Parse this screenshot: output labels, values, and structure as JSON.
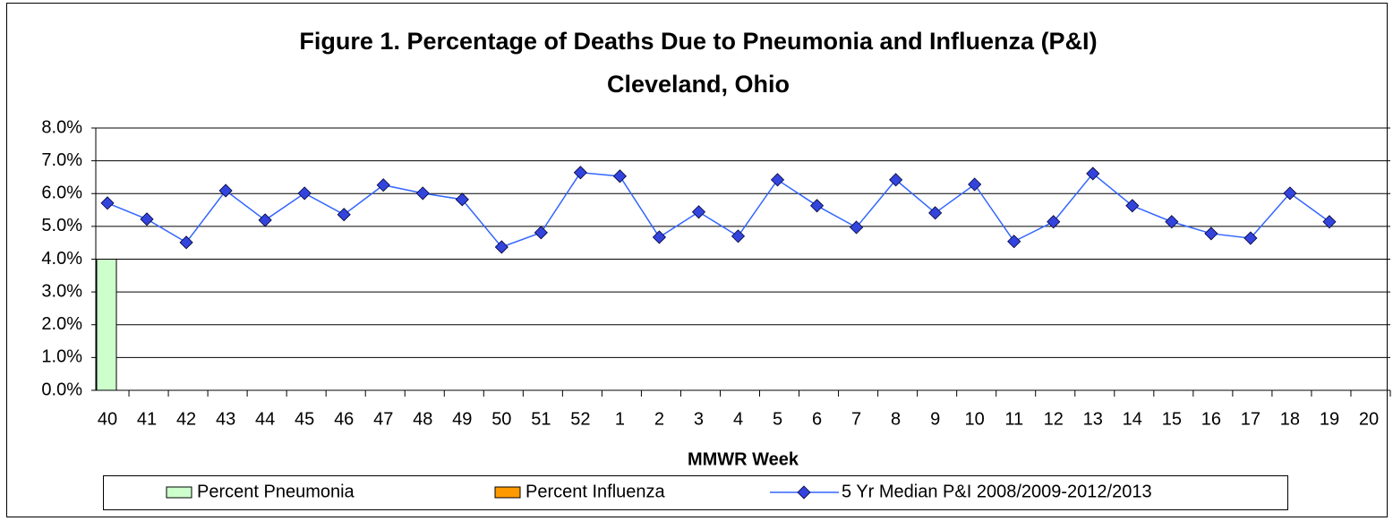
{
  "chart_data": {
    "type": "bar-line",
    "title": "Figure 1. Percentage of Deaths Due to Pneumonia and Influenza (P&I)",
    "subtitle": "Cleveland, Ohio",
    "x_label": "MMWR Week",
    "categories": [
      "40",
      "41",
      "42",
      "43",
      "44",
      "45",
      "46",
      "47",
      "48",
      "49",
      "50",
      "51",
      "52",
      "1",
      "2",
      "3",
      "4",
      "5",
      "6",
      "7",
      "8",
      "9",
      "10",
      "11",
      "12",
      "13",
      "14",
      "15",
      "16",
      "17",
      "18",
      "19",
      "20"
    ],
    "series": [
      {
        "name": "Percent Pneumonia",
        "type": "bar",
        "color": "#ccffcc",
        "values": [
          4.0,
          null,
          null,
          null,
          null,
          null,
          null,
          null,
          null,
          null,
          null,
          null,
          null,
          null,
          null,
          null,
          null,
          null,
          null,
          null,
          null,
          null,
          null,
          null,
          null,
          null,
          null,
          null,
          null,
          null,
          null,
          null,
          null
        ]
      },
      {
        "name": "Percent Influenza",
        "type": "bar",
        "color": "#ff9900",
        "values": [
          0,
          null,
          null,
          null,
          null,
          null,
          null,
          null,
          null,
          null,
          null,
          null,
          null,
          null,
          null,
          null,
          null,
          null,
          null,
          null,
          null,
          null,
          null,
          null,
          null,
          null,
          null,
          null,
          null,
          null,
          null,
          null,
          null
        ]
      },
      {
        "name": "5 Yr Median P&I 2008/2009-2012/2013",
        "type": "line",
        "color": "#3366ff",
        "marker_color": "#3344dd",
        "values": [
          5.71,
          5.22,
          4.51,
          6.09,
          5.19,
          6.01,
          5.36,
          6.26,
          6.01,
          5.82,
          4.37,
          4.81,
          6.64,
          6.53,
          4.67,
          5.44,
          4.7,
          6.42,
          5.63,
          4.97,
          6.42,
          5.41,
          6.28,
          4.54,
          5.14,
          6.61,
          5.63,
          5.14,
          4.78,
          4.64,
          6.01,
          5.14,
          null
        ]
      }
    ],
    "ylim": [
      0,
      8
    ],
    "yticks": [
      {
        "value": 0,
        "label": "0.0%"
      },
      {
        "value": 1,
        "label": "1.0%"
      },
      {
        "value": 2,
        "label": "2.0%"
      },
      {
        "value": 3,
        "label": "3.0%"
      },
      {
        "value": 4,
        "label": "4.0%"
      },
      {
        "value": 5,
        "label": "5.0%"
      },
      {
        "value": 6,
        "label": "6.0%"
      },
      {
        "value": 7,
        "label": "7.0%"
      },
      {
        "value": 8,
        "label": "8.0%"
      }
    ],
    "grid": true,
    "legend": "bottom"
  }
}
